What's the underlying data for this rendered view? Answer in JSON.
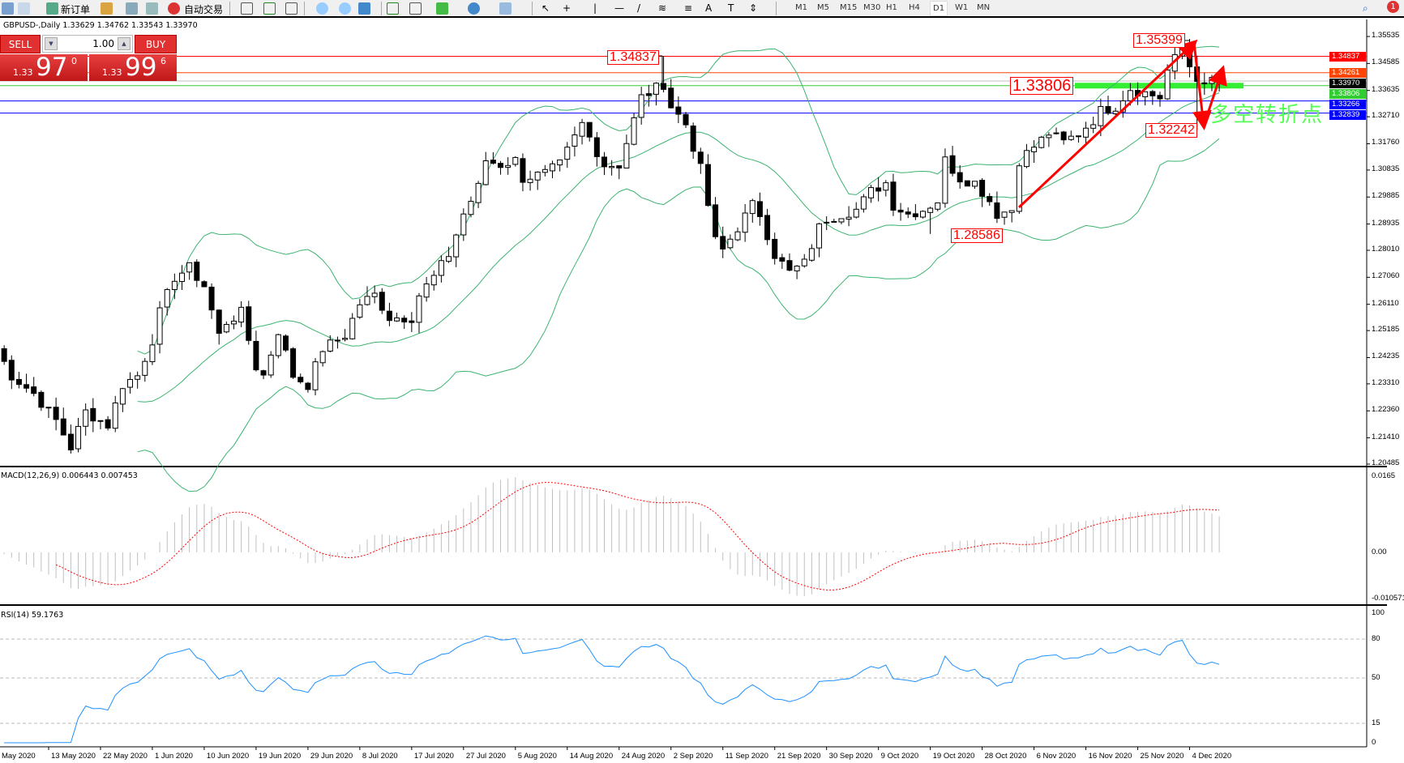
{
  "toolbar": {
    "new_order": "新订单",
    "auto_trading": "自动交易",
    "timeframes": [
      "M1",
      "M5",
      "M15",
      "M30",
      "H1",
      "H4",
      "D1",
      "W1",
      "MN"
    ],
    "active_timeframe": "D1",
    "notification_count": "1"
  },
  "chart": {
    "title": "GBPUSD-,Daily  1.33629 1.34762 1.33543 1.33970",
    "symbol": "GBPUSD-",
    "period": "Daily",
    "open": "1.33629",
    "high": "1.34762",
    "low": "1.33543",
    "close": "1.33970"
  },
  "trade_panel": {
    "sell_label": "SELL",
    "buy_label": "BUY",
    "lots": "1.00",
    "sell_prefix": "1.33",
    "sell_big": "97",
    "sell_sup": "0",
    "buy_prefix": "1.33",
    "buy_big": "99",
    "buy_sup": "6"
  },
  "price_axis": {
    "ticks": [
      "1.35535",
      "1.34585",
      "1.33635",
      "1.32710",
      "1.31760",
      "1.30835",
      "1.29885",
      "1.28935",
      "1.28010",
      "1.27060",
      "1.26110",
      "1.25185",
      "1.24235",
      "1.23310",
      "1.22360",
      "1.21410",
      "1.20485"
    ]
  },
  "levels": [
    {
      "price": "1.34837",
      "color": "#ff0000"
    },
    {
      "price": "1.34261",
      "color": "#ff4500"
    },
    {
      "price": "1.33970",
      "color": "#000000",
      "line": "#c0c0c0"
    },
    {
      "price": "1.33806",
      "color": "#32cd32"
    },
    {
      "price": "1.33266",
      "color": "#0000ff"
    },
    {
      "price": "1.32839",
      "color": "#0000ff"
    }
  ],
  "annotations": {
    "high1": "1.34837",
    "high2": "1.35399",
    "mid": "1.33806",
    "low1": "1.32242",
    "low2": "1.28586",
    "text": "多空转折点"
  },
  "closes": [
    [
      0,
      1.2455
    ],
    [
      2,
      1.236
    ],
    [
      5,
      1.2297
    ],
    [
      8,
      1.2202
    ],
    [
      10,
      1.2107
    ],
    [
      12,
      1.2233
    ],
    [
      15,
      1.2186
    ],
    [
      17,
      1.2328
    ],
    [
      19,
      1.236
    ],
    [
      21,
      1.2486
    ],
    [
      22,
      1.2581
    ],
    [
      24,
      1.2707
    ],
    [
      26,
      1.2739
    ],
    [
      28,
      1.2676
    ],
    [
      30,
      1.2502
    ],
    [
      31,
      1.2549
    ],
    [
      33,
      1.2581
    ],
    [
      35,
      1.2391
    ],
    [
      36,
      1.236
    ],
    [
      38,
      1.2518
    ],
    [
      40,
      1.236
    ],
    [
      42,
      1.2328
    ],
    [
      44,
      1.2455
    ],
    [
      45,
      1.247
    ],
    [
      47,
      1.2502
    ],
    [
      49,
      1.2613
    ],
    [
      51,
      1.2644
    ],
    [
      53,
      1.2565
    ],
    [
      56,
      1.2565
    ],
    [
      57,
      1.2644
    ],
    [
      59,
      1.2707
    ],
    [
      61,
      1.2786
    ],
    [
      63,
      1.2929
    ],
    [
      65,
      1.3023
    ],
    [
      66,
      1.3118
    ],
    [
      68,
      1.3102
    ],
    [
      70,
      1.3118
    ],
    [
      71,
      1.3055
    ],
    [
      74,
      1.3071
    ],
    [
      76,
      1.3102
    ],
    [
      79,
      1.3245
    ],
    [
      82,
      1.3102
    ],
    [
      84,
      1.3102
    ],
    [
      85,
      1.3181
    ],
    [
      87,
      1.3339
    ],
    [
      89,
      1.3371
    ],
    [
      90,
      1.3387
    ],
    [
      91,
      1.3308
    ],
    [
      93,
      1.3245
    ],
    [
      95,
      1.3087
    ],
    [
      97,
      1.2834
    ],
    [
      98,
      1.2802
    ],
    [
      100,
      1.2881
    ],
    [
      102,
      1.296
    ],
    [
      103,
      1.2929
    ],
    [
      105,
      1.2786
    ],
    [
      107,
      1.2723
    ],
    [
      109,
      1.2755
    ],
    [
      111,
      1.2881
    ],
    [
      112,
      1.2913
    ],
    [
      114,
      1.2929
    ],
    [
      116,
      1.2944
    ],
    [
      118,
      1.3008
    ],
    [
      120,
      1.3039
    ],
    [
      121,
      1.296
    ],
    [
      123,
      1.2929
    ],
    [
      125,
      1.2944
    ],
    [
      127,
      1.2976
    ],
    [
      128,
      1.3118
    ],
    [
      130,
      1.3055
    ],
    [
      132,
      1.3039
    ],
    [
      134,
      1.2976
    ],
    [
      135,
      1.2929
    ],
    [
      137,
      1.2944
    ],
    [
      138,
      1.3118
    ],
    [
      140,
      1.3166
    ],
    [
      142,
      1.3213
    ],
    [
      144,
      1.3181
    ],
    [
      146,
      1.3213
    ],
    [
      148,
      1.326
    ],
    [
      149,
      1.3292
    ],
    [
      151,
      1.3308
    ],
    [
      153,
      1.3371
    ],
    [
      155,
      1.3355
    ],
    [
      157,
      1.3339
    ],
    [
      158,
      1.3434
    ],
    [
      160,
      1.3513
    ],
    [
      161,
      1.345
    ],
    [
      163,
      1.3371
    ],
    [
      164,
      1.3403
    ],
    [
      165,
      1.3397
    ]
  ],
  "macd": {
    "label": "MACD(12,26,9) 0.006443 0.007453",
    "ticks": [
      "0.0165",
      "0.00",
      "-0.010571"
    ],
    "histogram_color": "#c0c0c0",
    "signal_color": "#ff0000"
  },
  "rsi": {
    "label": "RSI(14) 59.1763",
    "ticks": [
      "100",
      "80",
      "50",
      "15",
      "0"
    ],
    "levels": [
      80,
      50,
      15
    ],
    "color": "#1e90ff"
  },
  "bands_color": "#3cb371",
  "dates": [
    "May 2020",
    "13 May 2020",
    "22 May 2020",
    "1 Jun 2020",
    "10 Jun 2020",
    "19 Jun 2020",
    "29 Jun 2020",
    "8 Jul 2020",
    "17 Jul 2020",
    "27 Jul 2020",
    "5 Aug 2020",
    "14 Aug 2020",
    "24 Aug 2020",
    "2 Sep 2020",
    "11 Sep 2020",
    "21 Sep 2020",
    "30 Sep 2020",
    "9 Oct 2020",
    "19 Oct 2020",
    "28 Oct 2020",
    "6 Nov 2020",
    "16 Nov 2020",
    "25 Nov 2020",
    "4 Dec 2020"
  ]
}
